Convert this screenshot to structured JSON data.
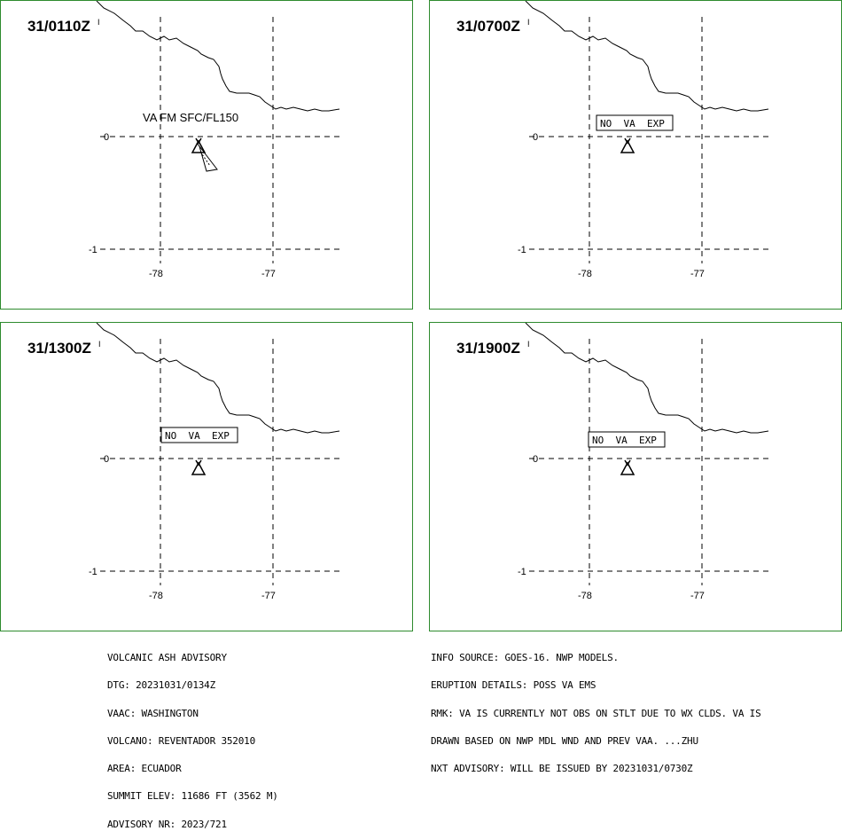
{
  "panels": [
    {
      "time": "31/0110Z",
      "annotation": "VA FM SFC/FL150",
      "annotation_style": "plain",
      "has_ash_polygon": true
    },
    {
      "time": "31/0700Z",
      "annotation": "NO  VA  EXP",
      "annotation_style": "boxed",
      "has_ash_polygon": false
    },
    {
      "time": "31/1300Z",
      "annotation": "NO  VA  EXP",
      "annotation_style": "boxed",
      "has_ash_polygon": false
    },
    {
      "time": "31/1900Z",
      "annotation": "NO  VA  EXP",
      "annotation_style": "boxed",
      "has_ash_polygon": false
    }
  ],
  "axes": {
    "lon_ticks": [
      "-78",
      "-77"
    ],
    "lat_ticks": [
      "0",
      "-1"
    ]
  },
  "volcano_icon": "volcano-triangle-icon",
  "colors": {
    "panel_border": "#2e8b2e",
    "line": "#000000",
    "background": "#ffffff"
  },
  "advisory_left": [
    "VOLCANIC ASH ADVISORY",
    "DTG: 20231031/0134Z",
    "VAAC: WASHINGTON",
    "VOLCANO: REVENTADOR 352010",
    "AREA: ECUADOR",
    "SUMMIT ELEV: 11686 FT (3562 M)",
    "ADVISORY NR: 2023/721"
  ],
  "advisory_right": [
    "INFO SOURCE: GOES-16. NWP MODELS.",
    "ERUPTION DETAILS: POSS VA EMS",
    "RMK: VA IS CURRENTLY NOT OBS ON STLT DUE TO WX CLDS. VA IS",
    "DRAWN BASED ON NWP MDL WND AND PREV VAA. ...ZHU",
    "NXT ADVISORY: WILL BE ISSUED BY 20231031/0730Z"
  ]
}
